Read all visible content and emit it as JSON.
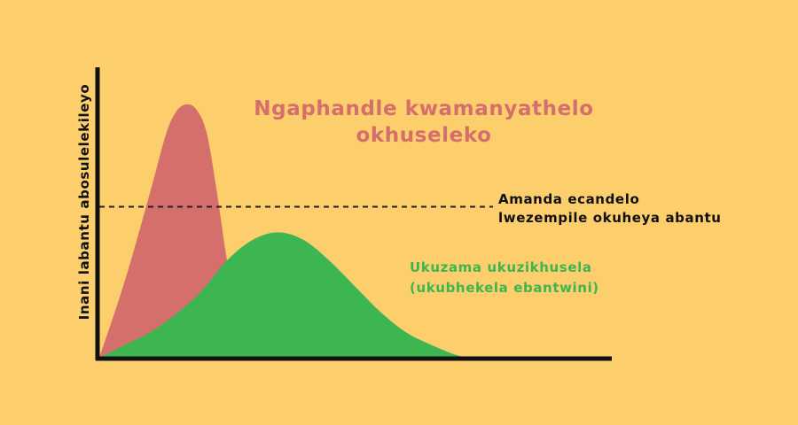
{
  "colors": {
    "background": "#FCCE6C",
    "axis": "#111111",
    "uncontrolled": "#D46F6C",
    "controlled": "#3DB652",
    "threshold": "#222222",
    "uncontrolled_text": "#D46F6C",
    "controlled_text": "#3DB652",
    "threshold_text": "#111111"
  },
  "chart_data": {
    "type": "area",
    "ylabel": "Inani labantu abosulelekileyo",
    "xlabel": "",
    "grid": false,
    "xlim": [
      0,
      100
    ],
    "ylim": [
      0,
      100
    ],
    "threshold": {
      "value": 59,
      "label_lines": [
        "Amanda ecandelo",
        "lwezempile okuheya abantu"
      ]
    },
    "series": [
      {
        "key": "uncontrolled",
        "label_lines": [
          "Ngaphandle kwamanyathelo",
          "okhuseleko"
        ],
        "x": [
          0,
          5,
          10,
          13,
          15,
          17,
          19,
          21,
          23,
          25,
          27,
          29,
          32
        ],
        "values": [
          0,
          30,
          65,
          87,
          96,
          99,
          97,
          88,
          65,
          38,
          18,
          8,
          0
        ]
      },
      {
        "key": "controlled",
        "label_lines": [
          "Ukuzama ukuzikhusela",
          "(ukubhekela ebantwini)"
        ],
        "x": [
          0,
          5,
          10,
          15,
          20,
          25,
          30,
          35,
          40,
          45,
          50,
          55,
          60,
          65,
          70,
          73
        ],
        "values": [
          0,
          5,
          10,
          17,
          26,
          38,
          46,
          49,
          46,
          38,
          28,
          18,
          10,
          5,
          1,
          0
        ]
      }
    ]
  }
}
